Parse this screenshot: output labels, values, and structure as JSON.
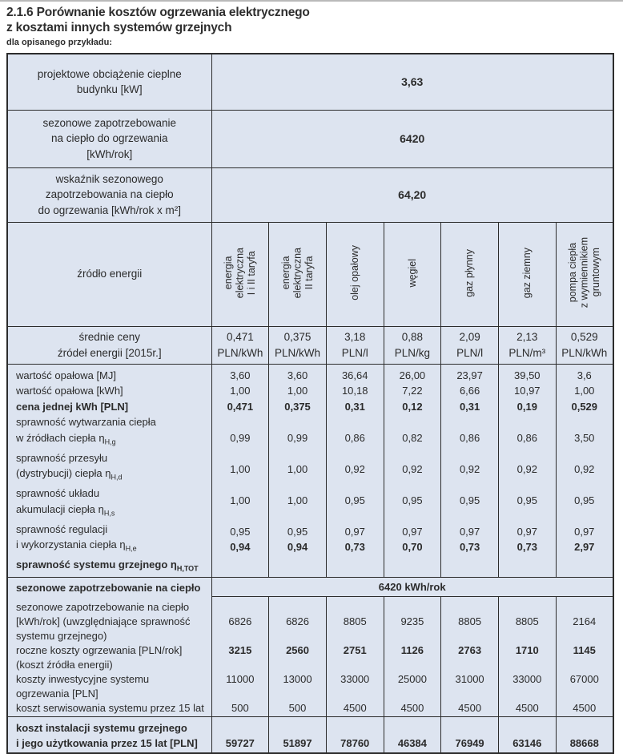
{
  "title": {
    "line1": "2.1.6 Porównanie kosztów ogrzewania elektrycznego",
    "line2": "z kosztami innych systemów grzejnych",
    "subtitle": "dla opisanego przykładu:"
  },
  "colors": {
    "cell_background": "#dde4f0",
    "border": "#2c2c2c",
    "text": "#2b2b2b"
  },
  "table": {
    "summary_rows": [
      {
        "label_lines": [
          "projektowe obciążenie cieplne",
          "budynku [kW]"
        ],
        "value": "3,63"
      },
      {
        "label_lines": [
          "sezonowe zapotrzebowanie",
          "na ciepło do ogrzewania",
          "[kWh/rok]"
        ],
        "value": "6420"
      },
      {
        "label_lines": [
          "wskaźnik sezonowego",
          "zapotrzebowania na ciepło",
          "do ogrzewania [kWh/rok x m²]"
        ],
        "value": "64,20"
      }
    ],
    "energy_header": {
      "label": "źródło energii",
      "columns": [
        [
          "energia",
          "elektryczna",
          "I i II taryfa"
        ],
        [
          "energia",
          "elektryczna",
          "II taryfa"
        ],
        [
          "olej opałowy"
        ],
        [
          "węgiel"
        ],
        [
          "gaz płynny"
        ],
        [
          "gaz ziemny"
        ],
        [
          "pompa ciepła",
          "z wymiennikiem",
          "gruntowym"
        ]
      ]
    },
    "price_row": {
      "label_lines": [
        "średnie ceny",
        "źródeł energii [2015r.]"
      ],
      "values": [
        [
          "0,471",
          "PLN/kWh"
        ],
        [
          "0,375",
          "PLN/kWh"
        ],
        [
          "3,18",
          "PLN/l"
        ],
        [
          "0,88",
          "PLN/kg"
        ],
        [
          "2,09",
          "PLN/l"
        ],
        [
          "2,13",
          "PLN/m³"
        ],
        [
          "0,529",
          "PLN/kWh"
        ]
      ]
    },
    "efficiency_block": {
      "lines": [
        {
          "label": "wartość opałowa [MJ]",
          "values": [
            "3,60",
            "3,60",
            "36,64",
            "26,00",
            "23,97",
            "39,50",
            "3,6"
          ]
        },
        {
          "label": "wartość opałowa [kWh]",
          "values": [
            "1,00",
            "1,00",
            "10,18",
            "7,22",
            "6,66",
            "10,97",
            "1,00"
          ]
        },
        {
          "label": "cena jednej kWh [PLN]",
          "bold": true,
          "values": [
            "0,471",
            "0,375",
            "0,31",
            "0,12",
            "0,31",
            "0,19",
            "0,529"
          ]
        },
        {
          "label": "sprawność wytwarzania ciepła"
        },
        {
          "label": "w źródłach ciepła η",
          "sub": "H,g",
          "values": [
            "0,99",
            "0,99",
            "0,86",
            "0,82",
            "0,86",
            "0,86",
            "3,50"
          ]
        },
        {
          "label": "sprawność przesyłu"
        },
        {
          "label": "(dystrybucji) ciepła η",
          "sub": "H,d",
          "values": [
            "1,00",
            "1,00",
            "0,92",
            "0,92",
            "0,92",
            "0,92",
            "0,92"
          ]
        },
        {
          "label": "sprawność układu"
        },
        {
          "label": "akumulacji ciepła η",
          "sub": "H,s",
          "values": [
            "1,00",
            "1,00",
            "0,95",
            "0,95",
            "0,95",
            "0,95",
            "0,95"
          ]
        },
        {
          "label": "sprawność regulacji"
        },
        {
          "label": "i wykorzystania ciepła η",
          "sub": "H,e",
          "values": [
            "0,95",
            "0,95",
            "0,97",
            "0,97",
            "0,97",
            "0,97",
            "0,97"
          ]
        },
        {
          "label": "sprawność systemu grzejnego η",
          "sub": "H,TOT",
          "bold": true,
          "values": [
            "0,94",
            "0,94",
            "0,73",
            "0,70",
            "0,73",
            "0,73",
            "2,97"
          ]
        }
      ]
    },
    "seasonal_row": {
      "label": "sezonowe zapotrzebowanie na ciepło",
      "value": "6420 kWh/rok"
    },
    "costs_block": {
      "lines": [
        {
          "label": "sezonowe zapotrzebowanie na ciepło"
        },
        {
          "label": "[kWh/rok] (uwzględniające sprawność",
          "values": [
            "6826",
            "6826",
            "8805",
            "9235",
            "8805",
            "8805",
            "2164"
          ]
        },
        {
          "label": "systemu grzejnego)"
        },
        {
          "label": "roczne koszty ogrzewania [PLN/rok]",
          "bold_values": true,
          "values": [
            "3215",
            "2560",
            "2751",
            "1126",
            "2763",
            "1710",
            "1145"
          ]
        },
        {
          "label": "(koszt źródła energii)"
        },
        {
          "label": "koszty inwestycyjne systemu",
          "values": [
            "11000",
            "13000",
            "33000",
            "25000",
            "31000",
            "33000",
            "67000"
          ]
        },
        {
          "label": "ogrzewania [PLN]"
        },
        {
          "label": "koszt serwisowania systemu przez 15 lat",
          "values": [
            "500",
            "500",
            "4500",
            "4500",
            "4500",
            "4500",
            "4500"
          ]
        }
      ]
    },
    "total_row": {
      "label_lines": [
        "koszt instalacji systemu grzejnego",
        "i jego użytkowania przez 15 lat [PLN]"
      ],
      "values": [
        "59727",
        "51897",
        "78760",
        "46384",
        "76949",
        "63146",
        "88668"
      ]
    }
  }
}
